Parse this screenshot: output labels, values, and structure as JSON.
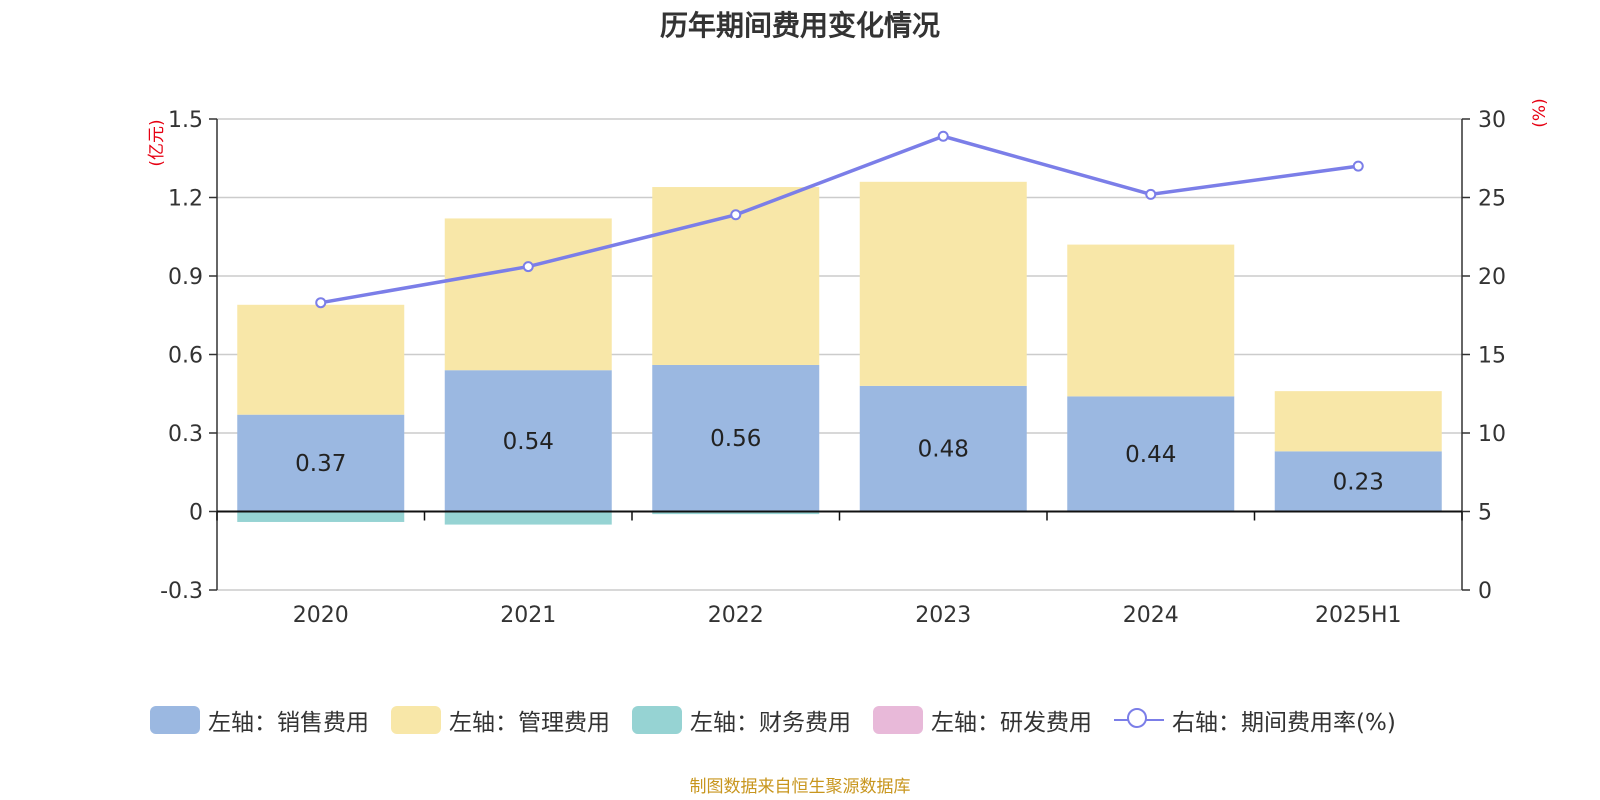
{
  "chart_data": {
    "type": "bar",
    "title": "历年期间费用变化情况",
    "categories": [
      "2020",
      "2021",
      "2022",
      "2023",
      "2024",
      "2025H1"
    ],
    "y_left": {
      "unit_label": "(亿元)",
      "range": [
        -0.3,
        1.5
      ],
      "ticks": [
        "-0.3",
        "0",
        "0.3",
        "0.6",
        "0.9",
        "1.2",
        "1.5"
      ],
      "tick_values": [
        -0.3,
        0,
        0.3,
        0.6,
        0.9,
        1.2,
        1.5
      ]
    },
    "y_right": {
      "unit_label": "(%)",
      "range": [
        0,
        30
      ],
      "ticks": [
        "0",
        "5",
        "10",
        "15",
        "20",
        "25",
        "30"
      ],
      "tick_values": [
        0,
        5,
        10,
        15,
        20,
        25,
        30
      ]
    },
    "series": [
      {
        "name": "左轴：销售费用",
        "type": "bar",
        "stack": true,
        "color": "#9bb8e1",
        "values": [
          0.37,
          0.54,
          0.56,
          0.48,
          0.44,
          0.23
        ],
        "labels": [
          "0.37",
          "0.54",
          "0.56",
          "0.48",
          "0.44",
          "0.23"
        ]
      },
      {
        "name": "左轴：管理费用",
        "type": "bar",
        "stack": true,
        "color": "#f8e7a8",
        "values": [
          0.42,
          0.58,
          0.68,
          0.78,
          0.58,
          0.23
        ]
      },
      {
        "name": "左轴：财务费用",
        "type": "bar",
        "stack": true,
        "color": "#96d3d3",
        "values": [
          -0.04,
          -0.05,
          -0.01,
          0,
          0,
          0
        ]
      },
      {
        "name": "左轴：研发费用",
        "type": "bar",
        "stack": true,
        "color": "#e8b9d9",
        "values": [
          0,
          0,
          0,
          0,
          0,
          0
        ]
      },
      {
        "name": "右轴：期间费用率(%)",
        "type": "line",
        "axis": "right",
        "color": "#7b7ee8",
        "values": [
          18.3,
          20.6,
          23.9,
          28.9,
          25.2,
          27.0
        ]
      }
    ],
    "grid": true,
    "legend_position": "bottom"
  },
  "colors": {
    "axis_unit": "#e60012",
    "source_text": "#c8961e",
    "grid": "#cccccc",
    "axis": "#333333"
  },
  "source": "制图数据来自恒生聚源数据库"
}
